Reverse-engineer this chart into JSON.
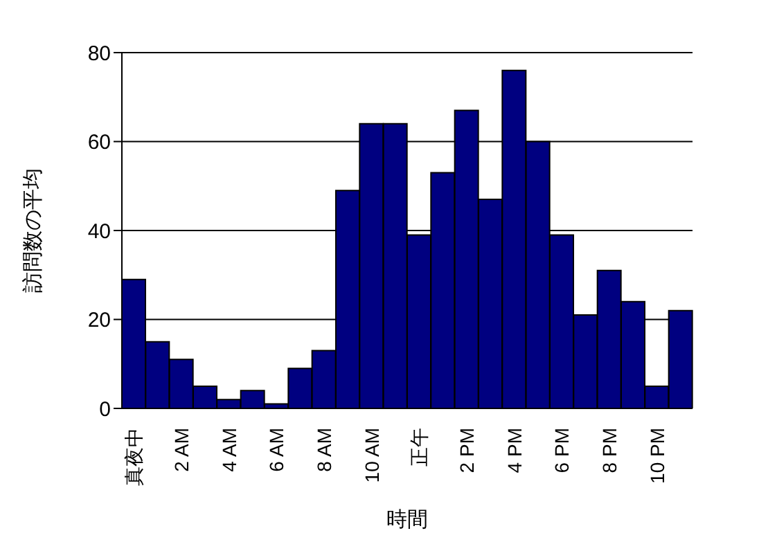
{
  "chart_data": {
    "type": "bar",
    "xlabel": "時間",
    "ylabel": "訪問数の平均",
    "categories": [
      "真夜中",
      null,
      "2 AM",
      null,
      "4 AM",
      null,
      "6 AM",
      null,
      "8 AM",
      null,
      "10 AM",
      null,
      "正午",
      null,
      "2 PM",
      null,
      "4 PM",
      null,
      "6 PM",
      null,
      "8 PM",
      null,
      "10 PM",
      null
    ],
    "values": [
      29,
      15,
      11,
      5,
      2,
      4,
      1,
      9,
      13,
      49,
      64,
      64,
      39,
      53,
      67,
      47,
      76,
      60,
      39,
      21,
      31,
      24,
      5,
      22
    ],
    "color": "#000080",
    "ylim": [
      0,
      80
    ],
    "yticks": [
      0,
      20,
      40,
      60,
      80
    ],
    "grid": "y",
    "legend": false
  }
}
